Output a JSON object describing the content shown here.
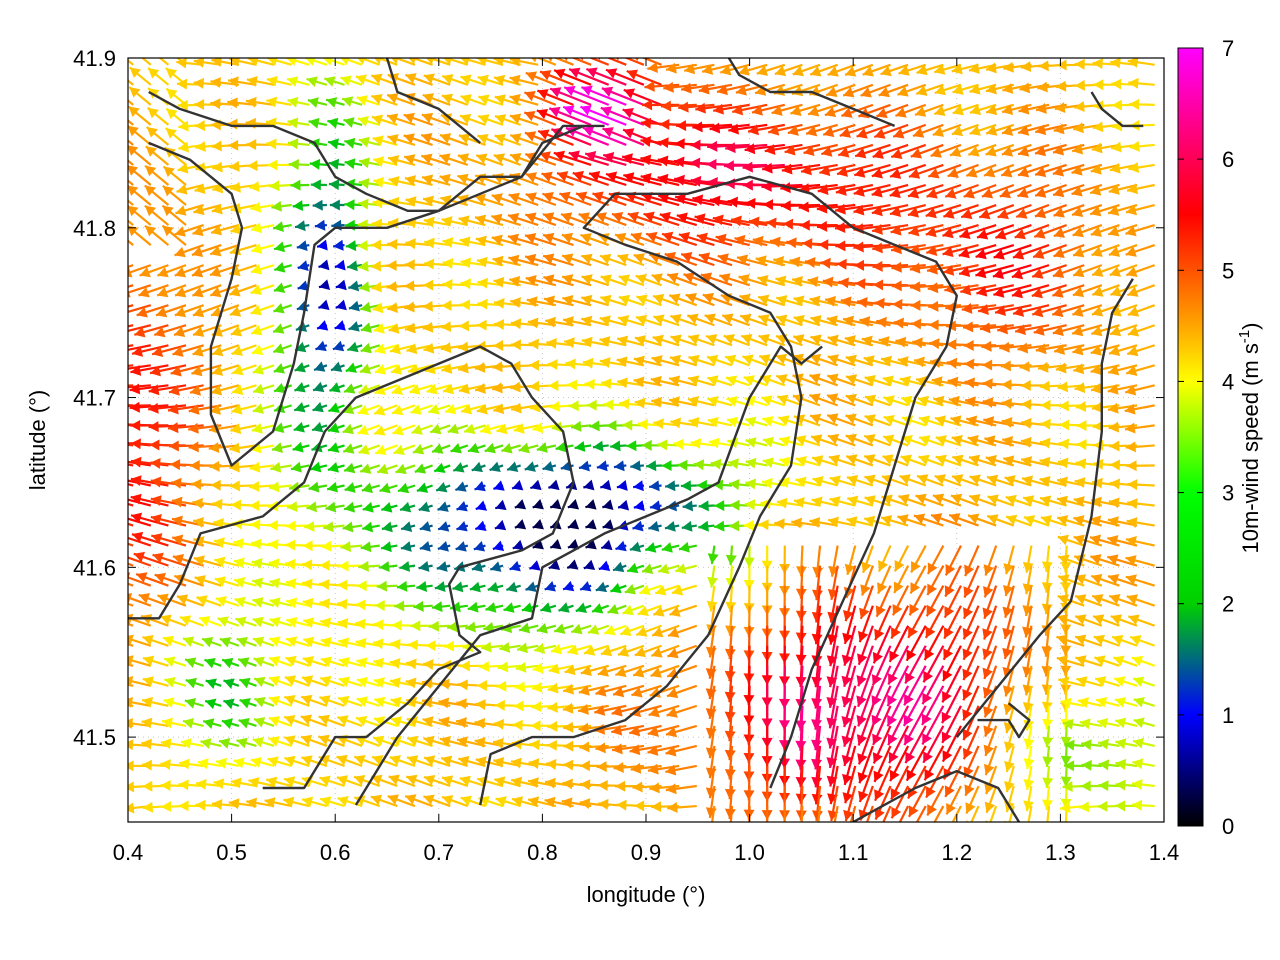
{
  "chart_data": {
    "type": "vector-field",
    "xlabel": "longitude (°)",
    "ylabel": "latitude (°)",
    "colorbar_label_main": "10m-wind speed (m s",
    "colorbar_label_sup": "-1",
    "colorbar_label_close": ")",
    "xlim": [
      0.4,
      1.4
    ],
    "ylim": [
      41.45,
      41.9
    ],
    "xticks": [
      "0.4",
      "0.5",
      "0.6",
      "0.7",
      "0.8",
      "0.9",
      "1.0",
      "1.1",
      "1.2",
      "1.3",
      "1.4"
    ],
    "yticks": [
      "41.5",
      "41.6",
      "41.7",
      "41.8",
      "41.9"
    ],
    "colorbar_ticks": [
      "0",
      "1",
      "2",
      "3",
      "4",
      "5",
      "6",
      "7"
    ],
    "colorbar_range": [
      0,
      7
    ],
    "grid": true,
    "colormap": [
      "#000000",
      "#0000ff",
      "#00ff00",
      "#ffff00",
      "#ffa500",
      "#ff0000",
      "#ff00ff"
    ],
    "field_summary": {
      "dominant_direction": "westward (from east)",
      "strong_zones": [
        {
          "region": "west edge (lon 0.40-0.48, lat 41.55-41.78)",
          "speed": 5.5
        },
        {
          "region": "north-central (lon 0.85-1.15, lat 41.78-41.88)",
          "speed": 5.8
        },
        {
          "region": "south-east (lon 0.95-1.30, lat 41.47-41.60)",
          "speed": 6.2
        }
      ],
      "weak_zones": [
        {
          "region": "central valley (lon 0.70-1.00, lat 41.60-41.68)",
          "speed": 1.2
        },
        {
          "region": "north-west (lon 0.55-0.65, lat 41.70-41.86)",
          "speed": 1.0
        }
      ]
    }
  }
}
